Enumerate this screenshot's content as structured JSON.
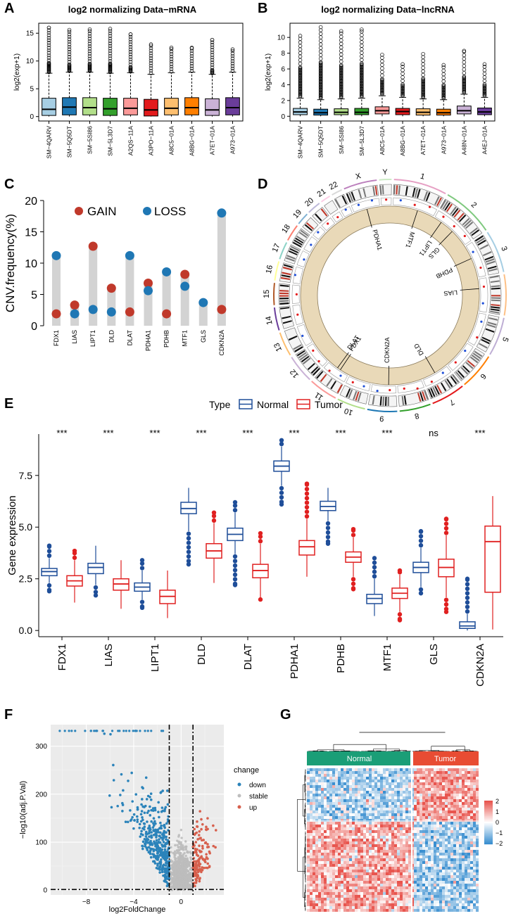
{
  "panels": {
    "A": "A",
    "B": "B",
    "C": "C",
    "D": "D",
    "E": "E",
    "F": "F",
    "G": "G"
  },
  "chart_data": [
    {
      "id": "A",
      "type": "box",
      "title": "log2 normalizing Data−mRNA",
      "ylabel": "log2(exp+1)",
      "ylim": [
        -0.8,
        16.8
      ],
      "yticks": [
        0,
        5,
        10,
        15
      ],
      "categories": [
        "SM−4QARV",
        "SM−5Q5DT",
        "SM−5SI86",
        "SM−5L3D7",
        "A2QS−11A",
        "A3PO−11A",
        "A8C5−01A",
        "A8BG−01A",
        "A7ET−01A",
        "A973−01A"
      ],
      "colors": [
        "#a6cee3",
        "#1f78b4",
        "#b2df8a",
        "#33a02c",
        "#fb9a99",
        "#e31a1c",
        "#fdbf6f",
        "#ff7f00",
        "#cab2d6",
        "#6a3d9a"
      ],
      "stats": [
        {
          "q1": 0.2,
          "med": 1.3,
          "q3": 3.3,
          "wmax": 7.8,
          "outmax": 16.0
        },
        {
          "q1": 0.3,
          "med": 1.7,
          "q3": 3.4,
          "wmax": 8.0,
          "outmax": 15.6
        },
        {
          "q1": 0.3,
          "med": 1.6,
          "q3": 3.4,
          "wmax": 8.0,
          "outmax": 15.7
        },
        {
          "q1": 0.2,
          "med": 1.4,
          "q3": 3.3,
          "wmax": 7.8,
          "outmax": 15.8
        },
        {
          "q1": 0.3,
          "med": 1.5,
          "q3": 3.3,
          "wmax": 7.9,
          "outmax": 14.8
        },
        {
          "q1": 0.1,
          "med": 1.2,
          "q3": 3.1,
          "wmax": 7.6,
          "outmax": 13.0
        },
        {
          "q1": 0.3,
          "med": 1.5,
          "q3": 3.3,
          "wmax": 7.9,
          "outmax": 12.4
        },
        {
          "q1": 0.3,
          "med": 1.6,
          "q3": 3.4,
          "wmax": 8.0,
          "outmax": 12.4
        },
        {
          "q1": 0.2,
          "med": 1.2,
          "q3": 3.2,
          "wmax": 7.6,
          "outmax": 13.8
        },
        {
          "q1": 0.3,
          "med": 1.6,
          "q3": 3.4,
          "wmax": 8.0,
          "outmax": 12.1
        }
      ]
    },
    {
      "id": "B",
      "type": "box",
      "title": "log2 normalizing Data−lncRNA",
      "ylabel": "log2(exp+1)",
      "ylim": [
        -0.6,
        11.8
      ],
      "yticks": [
        0,
        2,
        4,
        6,
        8,
        10
      ],
      "categories": [
        "SM−4QARV",
        "SM−5Q5DT",
        "SM−5SI86",
        "SM−5L3D7",
        "A8C5−01A",
        "A8BG−01A",
        "A7ET−01A",
        "A973−01A",
        "A48N−01A",
        "A4EJ−01A"
      ],
      "colors": [
        "#a6cee3",
        "#1f78b4",
        "#b2df8a",
        "#33a02c",
        "#fb9a99",
        "#e31a1c",
        "#fdbf6f",
        "#ff7f00",
        "#cab2d6",
        "#6a3d9a"
      ],
      "stats": [
        {
          "q1": 0.2,
          "med": 0.55,
          "q3": 1.0,
          "wmax": 2.3,
          "outmax": 10.2
        },
        {
          "q1": 0.15,
          "med": 0.45,
          "q3": 0.9,
          "wmax": 2.1,
          "outmax": 11.3
        },
        {
          "q1": 0.2,
          "med": 0.5,
          "q3": 0.95,
          "wmax": 2.2,
          "outmax": 10.8
        },
        {
          "q1": 0.2,
          "med": 0.5,
          "q3": 1.0,
          "wmax": 2.3,
          "outmax": 11.0
        },
        {
          "q1": 0.3,
          "med": 0.7,
          "q3": 1.2,
          "wmax": 2.6,
          "outmax": 7.8
        },
        {
          "q1": 0.2,
          "med": 0.6,
          "q3": 1.0,
          "wmax": 2.4,
          "outmax": 6.6
        },
        {
          "q1": 0.15,
          "med": 0.5,
          "q3": 0.95,
          "wmax": 2.2,
          "outmax": 7.9
        },
        {
          "q1": 0.15,
          "med": 0.45,
          "q3": 0.9,
          "wmax": 2.1,
          "outmax": 6.5
        },
        {
          "q1": 0.3,
          "med": 0.7,
          "q3": 1.3,
          "wmax": 2.8,
          "outmax": 8.3
        },
        {
          "q1": 0.2,
          "med": 0.55,
          "q3": 1.05,
          "wmax": 2.4,
          "outmax": 6.6
        }
      ]
    },
    {
      "id": "C",
      "type": "lollipop",
      "ylabel": "CNV.frequency(%)",
      "ylim": [
        0,
        20
      ],
      "yticks": [
        0,
        5,
        10,
        15,
        20
      ],
      "legend": [
        {
          "label": "GAIN",
          "color": "#c0392b"
        },
        {
          "label": "LOSS",
          "color": "#1f77b4"
        }
      ],
      "categories": [
        "FDX1",
        "LIAS",
        "LIPT1",
        "DLD",
        "DLAT",
        "PDHA1",
        "PDHB",
        "MTF1",
        "GLS",
        "CDKN2A"
      ],
      "gain": [
        1.9,
        3.3,
        12.7,
        6.0,
        2.2,
        6.8,
        1.9,
        8.2,
        null,
        2.6
      ],
      "loss": [
        11.2,
        1.9,
        2.6,
        2.2,
        11.2,
        5.6,
        8.6,
        6.3,
        3.7,
        18.0
      ]
    },
    {
      "id": "D",
      "type": "circos",
      "chromosomes": [
        "1",
        "2",
        "3",
        "4",
        "5",
        "6",
        "7",
        "8",
        "9",
        "10",
        "11",
        "12",
        "13",
        "14",
        "15",
        "16",
        "17",
        "18",
        "19",
        "20",
        "21",
        "22",
        "X",
        "Y"
      ],
      "genes": [
        {
          "label": "MTF1",
          "chr": "1"
        },
        {
          "label": "LIPT1",
          "chr": "2"
        },
        {
          "label": "GLS",
          "chr": "2"
        },
        {
          "label": "PDHB",
          "chr": "3"
        },
        {
          "label": "LIAS",
          "chr": "4"
        },
        {
          "label": "DLD",
          "chr": "7"
        },
        {
          "label": "CDKN2A",
          "chr": "9"
        },
        {
          "label": "FDX1",
          "chr": "11"
        },
        {
          "label": "DLAT",
          "chr": "11"
        },
        {
          "label": "PDHA1",
          "chr": "X"
        }
      ]
    },
    {
      "id": "E",
      "type": "box",
      "legend_title": "Type",
      "legend": [
        {
          "label": "Normal",
          "color": "#1f4e99"
        },
        {
          "label": "Tumor",
          "color": "#e02020"
        }
      ],
      "ylabel": "Gene expression",
      "ylim": [
        -0.3,
        9.5
      ],
      "yticks": [
        0.0,
        2.5,
        5.0,
        7.5
      ],
      "ytick_labels": [
        "0.0",
        "2.5",
        "5.0",
        "7.5"
      ],
      "categories": [
        "FDX1",
        "LIAS",
        "LIPT1",
        "DLD",
        "DLAT",
        "PDHA1",
        "PDHB",
        "MTF1",
        "GLS",
        "CDKN2A"
      ],
      "significance": [
        "***",
        "***",
        "***",
        "***",
        "***",
        "***",
        "***",
        "***",
        "ns",
        "***"
      ],
      "normal": [
        {
          "lo": 2.3,
          "q1": 2.65,
          "med": 2.85,
          "q3": 3.0,
          "hi": 3.5,
          "omin": 1.9,
          "omax": 4.1
        },
        {
          "lo": 2.2,
          "q1": 2.75,
          "med": 3.05,
          "q3": 3.25,
          "hi": 4.1,
          "omin": 1.7,
          "omax": 4.1
        },
        {
          "lo": 1.5,
          "q1": 1.9,
          "med": 2.1,
          "q3": 2.3,
          "hi": 2.9,
          "omin": 1.1,
          "omax": 3.4
        },
        {
          "lo": 4.8,
          "q1": 5.65,
          "med": 5.9,
          "q3": 6.2,
          "hi": 6.9,
          "omin": 3.2,
          "omax": 6.9
        },
        {
          "lo": 3.7,
          "q1": 4.35,
          "med": 4.65,
          "q3": 4.95,
          "hi": 5.7,
          "omin": 2.2,
          "omax": 6.2
        },
        {
          "lo": 7.0,
          "q1": 7.7,
          "med": 7.95,
          "q3": 8.2,
          "hi": 8.9,
          "omin": 6.1,
          "omax": 9.2
        },
        {
          "lo": 5.3,
          "q1": 5.8,
          "med": 6.0,
          "q3": 6.25,
          "hi": 6.9,
          "omin": 4.2,
          "omax": 6.9
        },
        {
          "lo": 0.7,
          "q1": 1.3,
          "med": 1.55,
          "q3": 1.75,
          "hi": 2.5,
          "omin": 0.7,
          "omax": 3.5
        },
        {
          "lo": 2.1,
          "q1": 2.8,
          "med": 3.05,
          "q3": 3.3,
          "hi": 4.0,
          "omin": 1.8,
          "omax": 4.8
        },
        {
          "lo": 0.0,
          "q1": 0.1,
          "med": 0.22,
          "q3": 0.42,
          "hi": 0.8,
          "omin": 0.0,
          "omax": 2.5
        }
      ],
      "tumor": [
        {
          "lo": 1.35,
          "q1": 2.15,
          "med": 2.4,
          "q3": 2.65,
          "hi": 3.4,
          "omin": 1.35,
          "omax": 3.85
        },
        {
          "lo": 1.05,
          "q1": 1.95,
          "med": 2.25,
          "q3": 2.5,
          "hi": 3.4,
          "omin": 1.05,
          "omax": 3.4
        },
        {
          "lo": 0.6,
          "q1": 1.3,
          "med": 1.65,
          "q3": 1.95,
          "hi": 2.9,
          "omin": 0.6,
          "omax": 2.9
        },
        {
          "lo": 2.3,
          "q1": 3.5,
          "med": 3.85,
          "q3": 4.2,
          "hi": 5.2,
          "omin": 2.3,
          "omax": 5.7
        },
        {
          "lo": 1.6,
          "q1": 2.55,
          "med": 2.9,
          "q3": 3.2,
          "hi": 4.2,
          "omin": 1.5,
          "omax": 4.7
        },
        {
          "lo": 2.6,
          "q1": 3.65,
          "med": 4.05,
          "q3": 4.35,
          "hi": 5.4,
          "omin": 2.6,
          "omax": 7.1
        },
        {
          "lo": 2.6,
          "q1": 3.3,
          "med": 3.55,
          "q3": 3.8,
          "hi": 4.5,
          "omin": 2.0,
          "omax": 4.9
        },
        {
          "lo": 0.9,
          "q1": 1.55,
          "med": 1.8,
          "q3": 2.05,
          "hi": 2.7,
          "omin": 0.5,
          "omax": 2.9
        },
        {
          "lo": 1.6,
          "q1": 2.6,
          "med": 3.05,
          "q3": 3.45,
          "hi": 4.6,
          "omin": 0.9,
          "omax": 5.4
        },
        {
          "lo": 0.05,
          "q1": 1.85,
          "med": 4.3,
          "q3": 5.05,
          "hi": 6.5,
          "omin": 0.05,
          "omax": 6.5
        }
      ]
    },
    {
      "id": "F",
      "type": "scatter",
      "xlabel": "log2FoldChange",
      "ylabel": "−log10(adj.P.Val)",
      "xlim": [
        -11,
        3.6
      ],
      "ylim": [
        -10,
        345
      ],
      "xticks": [
        -8,
        -4,
        0
      ],
      "xtick_labels": [
        "−8",
        "−4",
        "0"
      ],
      "yticks": [
        0,
        100,
        200,
        300
      ],
      "ytick_labels": [
        "0",
        "100",
        "200",
        "300"
      ],
      "thresholds": {
        "x": [
          -1,
          1
        ],
        "y": 1.3
      },
      "legend_title": "change",
      "legend": [
        {
          "label": "down",
          "color": "#2b83ba"
        },
        {
          "label": "stable",
          "color": "#bdbdbd"
        },
        {
          "label": "up",
          "color": "#d7604d"
        }
      ]
    },
    {
      "id": "G",
      "type": "heatmap",
      "groups": [
        {
          "label": "Normal",
          "color": "#1b9e77"
        },
        {
          "label": "Tumor",
          "color": "#e84c33"
        }
      ],
      "legend_ticks": [
        "2",
        "1",
        "0",
        "−1",
        "−2"
      ],
      "legend_colors": {
        "high": "#e8554e",
        "mid": "#ffffff",
        "low": "#3a8fd0"
      }
    }
  ]
}
